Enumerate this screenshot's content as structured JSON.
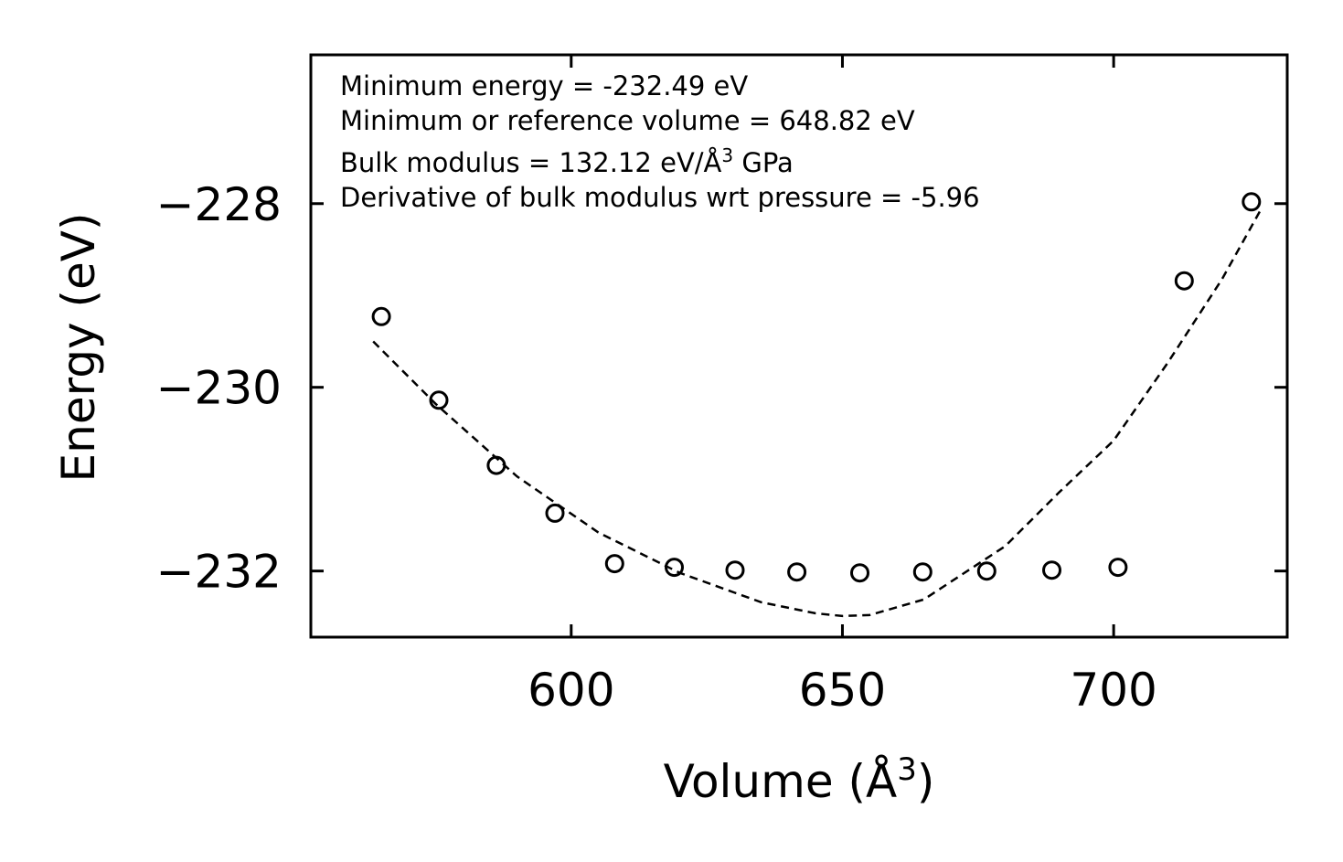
{
  "chart_data": {
    "type": "scatter",
    "xlabel": "Volume (Å",
    "xlabel_sup": "3",
    "xlabel_end": ")",
    "ylabel": "Energy (eV)",
    "xlim": [
      552,
      732
    ],
    "ylim": [
      -232.72,
      -226.38
    ],
    "xticks": [
      600,
      650,
      700
    ],
    "xtick_labels": [
      "600",
      "650",
      "700"
    ],
    "yticks": [
      -228,
      -230,
      -232
    ],
    "ytick_labels": [
      "−228",
      "−230",
      "−232"
    ],
    "grid": false,
    "legend": "none",
    "series": [
      {
        "name": "data",
        "marker": "open-circle",
        "x": [
          565.0,
          575.6,
          586.2,
          597.0,
          608.0,
          619.0,
          630.2,
          641.6,
          653.2,
          664.8,
          676.6,
          688.6,
          700.8,
          713.0,
          725.4
        ],
        "y": [
          -229.23,
          -230.14,
          -230.85,
          -231.37,
          -231.92,
          -231.96,
          -231.99,
          -232.01,
          -232.02,
          -232.01,
          -232.0,
          -231.99,
          -231.96,
          -228.84,
          -227.98
        ]
      },
      {
        "name": "fit",
        "line_style": "dashed",
        "x": [
          563.5,
          575,
          590,
          605,
          620,
          635,
          645,
          650,
          655,
          665,
          680,
          690,
          700,
          710,
          720,
          727
        ],
        "y": [
          -229.5,
          -230.18,
          -230.97,
          -231.58,
          -232.02,
          -232.34,
          -232.46,
          -232.49,
          -232.48,
          -232.31,
          -231.73,
          -231.14,
          -230.58,
          -229.73,
          -228.82,
          -228.08
        ]
      }
    ],
    "annotations": [
      {
        "text": "Minimum energy = -232.49 eV"
      },
      {
        "text": "Minimum or reference volume = 648.82 eV"
      },
      {
        "text": "Bulk modulus = 132.12 eV/Å",
        "sup": "3",
        "tail": " GPa"
      },
      {
        "text": "Derivative of bulk modulus wrt pressure = -5.96"
      }
    ]
  }
}
